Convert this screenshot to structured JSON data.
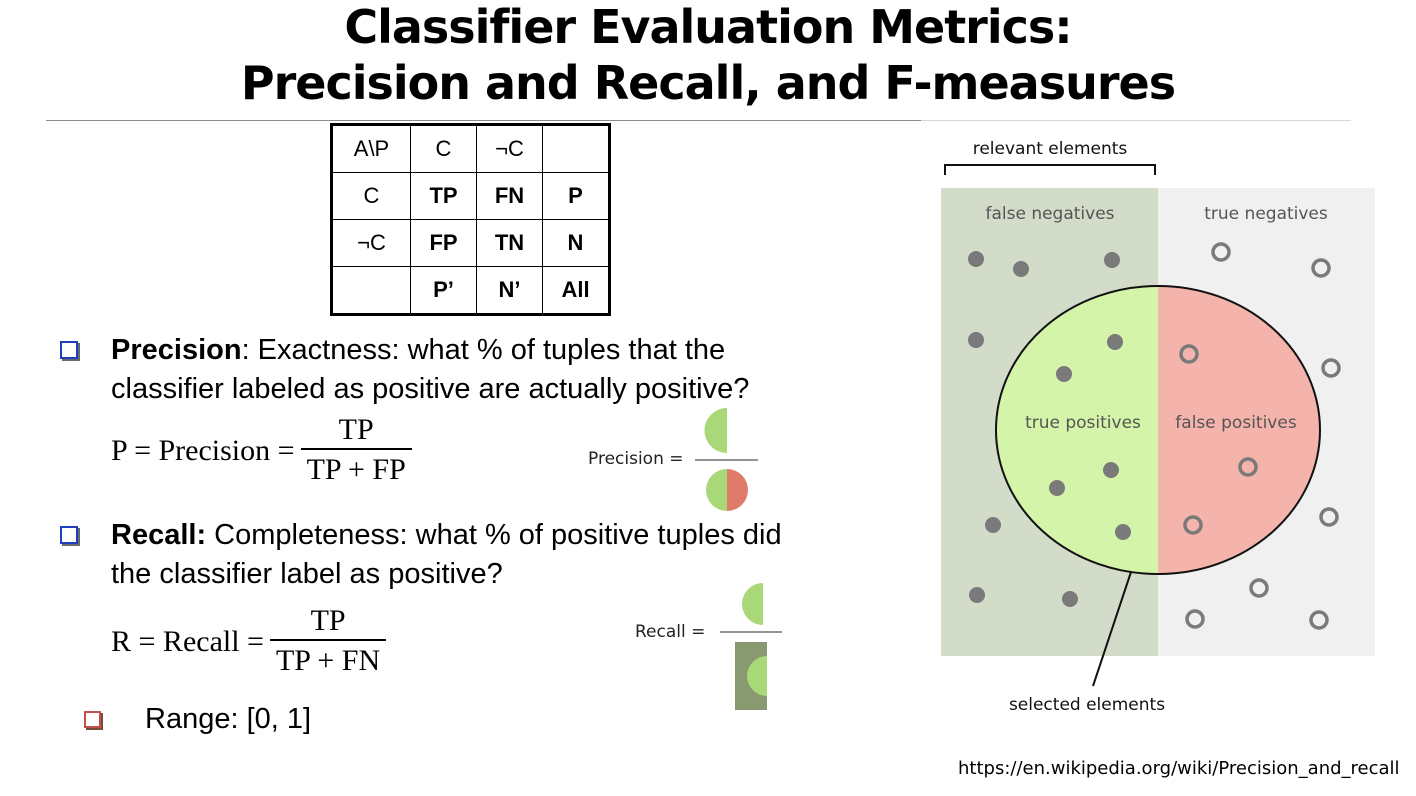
{
  "slide": {
    "title_line1": "Classifier Evaluation Metrics:",
    "title_line2": "Precision and Recall, and F-measures",
    "source_url": "https://en.wikipedia.org/wiki/Precision_and_recall"
  },
  "confusion_matrix": {
    "rows": [
      [
        "A\\P",
        "C",
        "¬C",
        ""
      ],
      [
        "C",
        "TP",
        "FN",
        "P"
      ],
      [
        "¬C",
        "FP",
        "TN",
        "N"
      ],
      [
        "",
        "P’",
        "N’",
        "All"
      ]
    ]
  },
  "precision": {
    "term": "Precision",
    "line1_rest": ": Exactness: what % of tuples that the",
    "line2": "classifier labeled as positive are actually positive?",
    "formula_lhs": "P = Precision =",
    "formula_num": "TP",
    "formula_den": "TP + FP",
    "figure_label": "Precision ="
  },
  "recall": {
    "term": "Recall:",
    "line1_rest": " Completeness: what % of positive tuples did",
    "line2": "the classifier label as positive?",
    "formula_lhs": "R = Recall =",
    "formula_num": "TP",
    "formula_den": "TP + FN",
    "figure_label": "Recall ="
  },
  "range": {
    "text": "Range: [0, 1]"
  },
  "diagram": {
    "relevant_label": "relevant elements",
    "false_negatives": "false negatives",
    "true_negatives": "true negatives",
    "true_positives": "true positives",
    "false_positives": "false positives",
    "selected_label": "selected elements",
    "colors": {
      "relevant_bg": "#d3dcc9",
      "irrelevant_bg": "#f0f0f0",
      "tp_fill": "#d4f4aa",
      "fp_fill": "#f4b4ac",
      "dot": "#7a7a7a"
    }
  }
}
